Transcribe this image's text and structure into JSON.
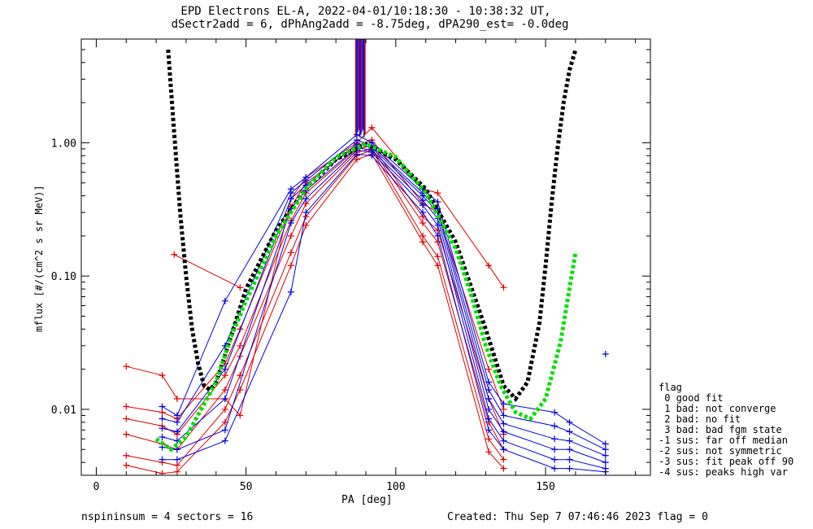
{
  "title": {
    "line1": "EPD Electrons EL-A, 2022-04-01/10:18:30 - 10:38:32 UT,",
    "line2": "dSectr2add = 6, dPhAng2add = -8.75deg, dPA290_est=  -0.0deg"
  },
  "footer": {
    "left": "nspininsum =  4  sectors = 16",
    "right": "Created: Thu Sep  7 07:46:46 2023   flag = 0"
  },
  "legend": {
    "heading": "flag",
    "items": [
      " 0 good fit",
      " 1 bad: not converge",
      " 2 bad: no fit",
      " 3 bad: bad fgm state",
      "-1 sus: far off median",
      "-2 sus: not symmetric",
      "-3 sus: fit peak off 90",
      "-4 sus: peaks high var"
    ]
  },
  "colors": {
    "series_red": "#e00000",
    "series_blue": "#0000e0",
    "fit_black": "#000000",
    "fit_green": "#00e000"
  },
  "chart_data": {
    "type": "line",
    "xlabel": "PA [deg]",
    "ylabel": "mflux [#/(cm^2 s sr MeV)]",
    "xlim": [
      -5,
      185
    ],
    "ylim": [
      0.0032,
      6
    ],
    "yscale": "log",
    "xticks": [
      0,
      50,
      100,
      150
    ],
    "yticks": [
      0.01,
      0.1,
      1.0
    ],
    "ytick_labels": [
      "0.01",
      "0.10",
      "1.00"
    ],
    "grid": false,
    "series": [
      {
        "color": "red",
        "x": [
          10,
          22,
          27,
          43,
          48,
          65,
          70,
          87,
          92,
          109,
          114,
          131,
          136
        ],
        "y": [
          0.021,
          0.018,
          0.012,
          0.012,
          0.009,
          0.38,
          0.55,
          1.0,
          1.3,
          0.45,
          0.42,
          0.12,
          0.082
        ]
      },
      {
        "color": "red",
        "x": [
          26,
          48
        ],
        "y": [
          0.145,
          0.082
        ]
      },
      {
        "color": "red",
        "x": [
          10,
          22,
          27,
          43,
          48,
          65,
          70,
          87,
          92,
          109,
          114,
          131,
          136
        ],
        "y": [
          0.0105,
          0.0095,
          0.0085,
          0.022,
          0.04,
          0.33,
          0.5,
          0.95,
          1.05,
          0.35,
          0.3,
          0.02,
          0.01
        ]
      },
      {
        "color": "red",
        "x": [
          10,
          22,
          27,
          43,
          48,
          65,
          70,
          87,
          92,
          109,
          114,
          131,
          136
        ],
        "y": [
          0.0085,
          0.0075,
          0.0065,
          0.018,
          0.03,
          0.26,
          0.42,
          0.9,
          0.95,
          0.28,
          0.22,
          0.012,
          0.0065
        ]
      },
      {
        "color": "red",
        "x": [
          10,
          22,
          27,
          43,
          48,
          65,
          70,
          87,
          92,
          109,
          114,
          131,
          136
        ],
        "y": [
          0.0065,
          0.0055,
          0.005,
          0.014,
          0.025,
          0.2,
          0.35,
          0.85,
          0.9,
          0.25,
          0.18,
          0.008,
          0.005
        ]
      },
      {
        "color": "red",
        "x": [
          10,
          22,
          27,
          43,
          48,
          65,
          70,
          87,
          92,
          109,
          114,
          131,
          136
        ],
        "y": [
          0.0045,
          0.004,
          0.0038,
          0.01,
          0.018,
          0.15,
          0.28,
          0.8,
          0.88,
          0.2,
          0.14,
          0.006,
          0.0042
        ]
      },
      {
        "color": "red",
        "x": [
          10,
          22,
          27,
          43,
          48,
          65,
          70,
          87,
          92,
          109,
          114,
          131,
          136
        ],
        "y": [
          0.0038,
          0.0033,
          0.0034,
          0.008,
          0.014,
          0.12,
          0.24,
          0.75,
          0.82,
          0.18,
          0.12,
          0.0048,
          0.0036
        ]
      },
      {
        "color": "blue",
        "x": [
          22,
          27,
          43,
          65,
          70,
          87,
          92,
          109,
          114,
          131,
          136,
          153,
          158,
          170
        ],
        "y": [
          0.0105,
          0.009,
          0.065,
          0.45,
          0.55,
          1.15,
          1.0,
          0.45,
          0.36,
          0.016,
          0.011,
          0.0095,
          0.008,
          0.0055
        ]
      },
      {
        "color": "blue",
        "x": [
          22,
          27,
          43,
          65,
          70,
          87,
          92,
          109,
          114,
          131,
          136,
          153,
          158,
          170
        ],
        "y": [
          0.0085,
          0.008,
          0.03,
          0.42,
          0.52,
          1.05,
          0.95,
          0.42,
          0.32,
          0.014,
          0.009,
          0.0075,
          0.0068,
          0.005
        ]
      },
      {
        "color": "blue",
        "x": [
          22,
          27,
          43,
          65,
          70,
          87,
          92,
          109,
          114,
          131,
          136,
          153,
          158,
          170
        ],
        "y": [
          0.0072,
          0.0068,
          0.02,
          0.38,
          0.48,
          0.98,
          0.92,
          0.4,
          0.3,
          0.012,
          0.0078,
          0.006,
          0.0058,
          0.0045
        ]
      },
      {
        "color": "blue",
        "x": [
          22,
          27,
          43,
          65,
          70,
          87,
          92,
          109,
          114,
          131,
          136,
          153,
          158,
          170
        ],
        "y": [
          0.0062,
          0.0058,
          0.012,
          0.32,
          0.44,
          0.92,
          0.88,
          0.37,
          0.27,
          0.01,
          0.0068,
          0.005,
          0.005,
          0.004
        ]
      },
      {
        "color": "blue",
        "x": [
          22,
          27,
          43,
          65,
          70,
          87,
          92,
          109,
          114,
          131,
          136,
          153,
          158,
          170
        ],
        "y": [
          0.0052,
          0.005,
          0.007,
          0.25,
          0.38,
          0.88,
          0.85,
          0.34,
          0.24,
          0.0085,
          0.0058,
          0.0042,
          0.0042,
          0.0036
        ]
      },
      {
        "color": "blue",
        "x": [
          22,
          27,
          43,
          65,
          70,
          87,
          92,
          109,
          114,
          131,
          136,
          153,
          158,
          170
        ],
        "y": [
          0.0042,
          0.0042,
          0.0058,
          0.076,
          0.3,
          0.82,
          0.8,
          0.3,
          0.2,
          0.007,
          0.005,
          0.0036,
          0.0036,
          0.0034
        ]
      },
      {
        "color": "blue",
        "x": [
          170
        ],
        "y": [
          0.026
        ]
      }
    ],
    "fits": [
      {
        "name": "",
        "color": "black",
        "style": "dotted",
        "x": [
          24,
          26,
          28,
          30,
          32,
          34,
          36,
          38,
          40,
          44,
          50,
          60,
          70,
          80,
          90,
          100,
          110,
          120,
          130,
          136,
          140,
          144,
          148,
          150,
          152,
          154,
          156,
          158,
          160
        ],
        "y": [
          5.0,
          1.2,
          0.3,
          0.1,
          0.04,
          0.022,
          0.015,
          0.014,
          0.016,
          0.03,
          0.08,
          0.22,
          0.45,
          0.75,
          0.98,
          0.75,
          0.45,
          0.18,
          0.04,
          0.015,
          0.012,
          0.016,
          0.045,
          0.12,
          0.35,
          0.9,
          2.0,
          3.5,
          5.0
        ]
      },
      {
        "name": "",
        "color": "green",
        "style": "dotted",
        "x": [
          20,
          25,
          30,
          35,
          40,
          45,
          50,
          60,
          70,
          80,
          90,
          100,
          110,
          120,
          125,
          130,
          135,
          140,
          145,
          150,
          155,
          160
        ],
        "y": [
          0.006,
          0.005,
          0.0062,
          0.01,
          0.016,
          0.035,
          0.065,
          0.2,
          0.45,
          0.78,
          0.98,
          0.78,
          0.42,
          0.16,
          0.075,
          0.03,
          0.015,
          0.0095,
          0.0085,
          0.012,
          0.032,
          0.15
        ]
      }
    ]
  }
}
